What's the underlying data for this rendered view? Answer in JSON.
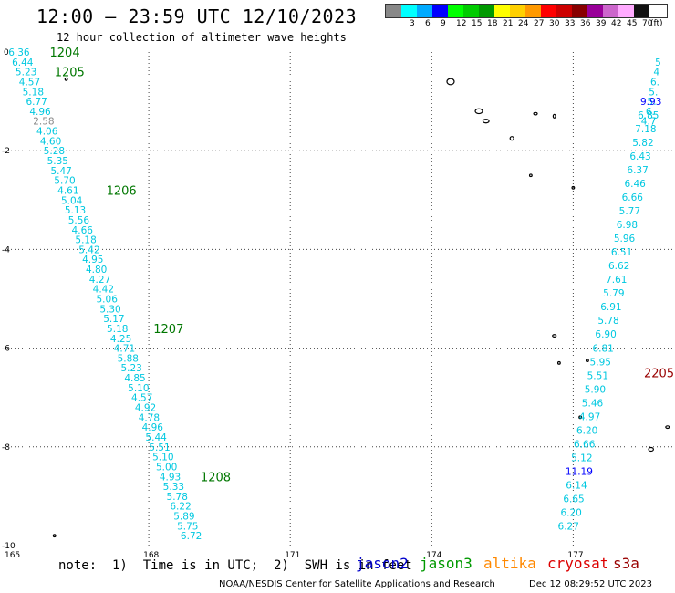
{
  "header": {
    "title": "12:00 – 23:59 UTC 12/10/2023",
    "subtitle": "12 hour collection of altimeter wave heights"
  },
  "legend": {
    "unit_label": "(ft)",
    "swatches": [
      {
        "label": "",
        "color": "#888888"
      },
      {
        "label": "3",
        "color": "#00ffff"
      },
      {
        "label": "6",
        "color": "#00aaff"
      },
      {
        "label": "9",
        "color": "#0000ff"
      },
      {
        "label": "12",
        "color": "#00ff00"
      },
      {
        "label": "15",
        "color": "#00cc00"
      },
      {
        "label": "18",
        "color": "#009900"
      },
      {
        "label": "21",
        "color": "#ffff00"
      },
      {
        "label": "24",
        "color": "#ffd000"
      },
      {
        "label": "27",
        "color": "#ff9900"
      },
      {
        "label": "30",
        "color": "#ff0000"
      },
      {
        "label": "33",
        "color": "#cc0000"
      },
      {
        "label": "36",
        "color": "#880000"
      },
      {
        "label": "39",
        "color": "#990099"
      },
      {
        "label": "42",
        "color": "#cc66cc"
      },
      {
        "label": "45",
        "color": "#ffaaff"
      },
      {
        "label": "70",
        "color": "#111111"
      }
    ]
  },
  "axes": {
    "x_ticks": [
      "165",
      "168",
      "171",
      "174",
      "177"
    ],
    "y_ticks": [
      "0",
      "-2",
      "-4",
      "-6",
      "-8",
      "-10"
    ]
  },
  "passes": [
    {
      "id": "1204",
      "label_lon": 165.9,
      "label_lat": 0.0,
      "color": "#007700"
    },
    {
      "id": "1205",
      "label_lon": 166.0,
      "label_lat": -0.4,
      "color": "#007700"
    },
    {
      "id": "1206",
      "label_lon": 167.1,
      "label_lat": -2.8,
      "color": "#007700"
    },
    {
      "id": "1207",
      "label_lon": 168.1,
      "label_lat": -5.6,
      "color": "#007700"
    },
    {
      "id": "1208",
      "label_lon": 169.1,
      "label_lat": -8.6,
      "color": "#007700"
    },
    {
      "id": "2205",
      "label_lon": 178.5,
      "label_lat": -6.5,
      "color": "#990000"
    }
  ],
  "west_track": {
    "start": {
      "lon": 165.25,
      "lat": 0.0
    },
    "end": {
      "lon": 168.9,
      "lat": -9.8
    },
    "values": [
      "6.36",
      "6.44",
      "5.23",
      "4.57",
      "5.18",
      "6.77",
      "4.96",
      "2.58",
      "4.06",
      "4.60",
      "5.28",
      "5.35",
      "5.47",
      "5.70",
      "4.61",
      "5.04",
      "5.13",
      "5.56",
      "4.66",
      "5.18",
      "5.42",
      "4.95",
      "4.80",
      "4.27",
      "4.42",
      "5.06",
      "5.30",
      "5.17",
      "5.18",
      "4.25",
      "4.71",
      "5.88",
      "5.23",
      "4.85",
      "5.10",
      "4.57",
      "4.92",
      "4.78",
      "4.96",
      "5.44",
      "5.51",
      "5.10",
      "5.00",
      "4.93",
      "5.33",
      "5.78",
      "6.22",
      "5.89",
      "5.75",
      "6.72"
    ],
    "colors": {
      "7": "#888888"
    }
  },
  "east_track": {
    "start": {
      "lon": 178.65,
      "lat": -1.0
    },
    "end": {
      "lon": 176.9,
      "lat": -9.6
    },
    "top_values": [
      "5",
      "4",
      "6.",
      "5.",
      "5.",
      "6.",
      "4.7"
    ],
    "top_start": {
      "lon": 178.8,
      "lat": -0.2
    },
    "top_end": {
      "lon": 178.6,
      "lat": -1.4
    },
    "values": [
      "9.93",
      "6.85",
      "7.18",
      "5.82",
      "6.43",
      "6.37",
      "6.46",
      "6.66",
      "5.77",
      "6.98",
      "5.96",
      "6.51",
      "6.62",
      "7.61",
      "5.79",
      "6.91",
      "5.78",
      "6.90",
      "6.81",
      "5.95",
      "5.51",
      "5.90",
      "5.46",
      "4.97",
      "6.20",
      "6.66",
      "5.12",
      "11.19",
      "6.14",
      "6.65",
      "6.20",
      "6.27"
    ],
    "colors": {
      "0": "#0000ff",
      "27": "#0000ff"
    }
  },
  "footer": {
    "note": "note:  1)  Time is in UTC;  2)  SWH is in feet",
    "satellites": [
      {
        "name": "jason2",
        "color": "#0000cc"
      },
      {
        "name": "jason3",
        "color": "#009900"
      },
      {
        "name": "altika",
        "color": "#ff8800"
      },
      {
        "name": "cryosat",
        "color": "#dd0000"
      },
      {
        "name": "s3a",
        "color": "#990000"
      }
    ],
    "credit": "NOAA/NESDIS Center for Satellite Applications and Research",
    "timestamp": "Dec 12 08:29:52 UTC 2023"
  }
}
